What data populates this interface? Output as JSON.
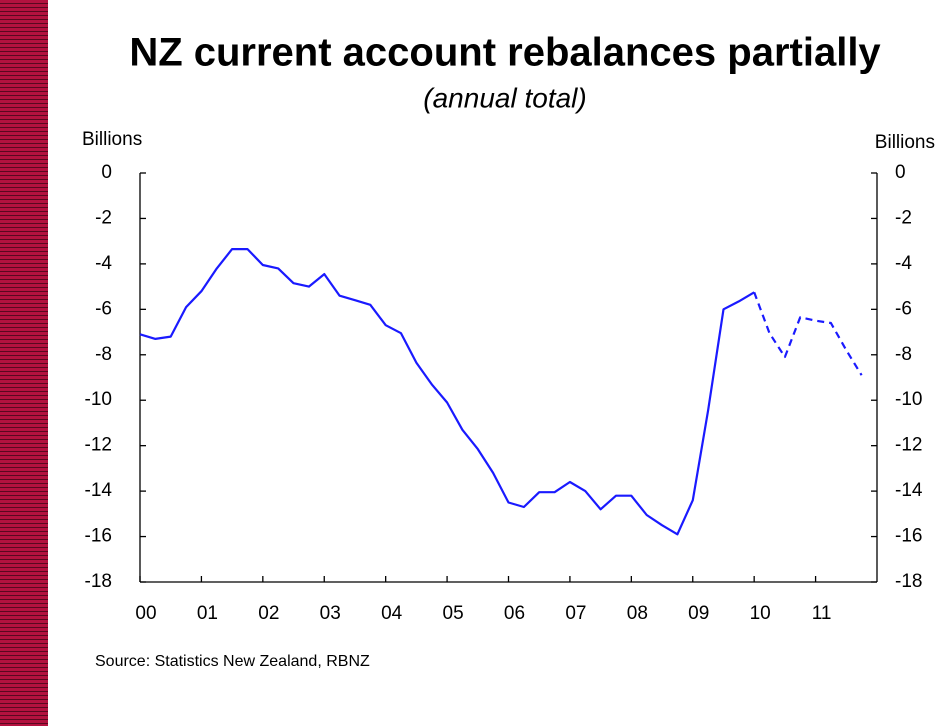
{
  "chart_data": {
    "type": "line",
    "title": "NZ current account rebalances partially",
    "subtitle": "(annual total)",
    "y_label": "Billions",
    "y2_label": "Billions",
    "source": "Source: Statistics New Zealand, RBNZ",
    "x": [
      2000,
      2000.25,
      2000.5,
      2000.75,
      2001,
      2001.25,
      2001.5,
      2001.75,
      2002,
      2002.25,
      2002.5,
      2002.75,
      2003,
      2003.25,
      2003.5,
      2003.75,
      2004,
      2004.25,
      2004.5,
      2004.75,
      2005,
      2005.25,
      2005.5,
      2005.75,
      2006,
      2006.25,
      2006.5,
      2006.75,
      2007,
      2007.25,
      2007.5,
      2007.75,
      2008,
      2008.25,
      2008.5,
      2008.75,
      2009,
      2009.25,
      2009.5,
      2009.75,
      2010,
      2010.25,
      2010.5,
      2010.75,
      2011,
      2011.25,
      2011.5,
      2011.75
    ],
    "series": [
      {
        "color": "#1a1aff",
        "dash": false,
        "values": [
          -7.1,
          -7.3,
          -7.2,
          -5.9,
          -5.2,
          -4.2,
          -3.35,
          -3.35,
          -4.05,
          -4.2,
          -4.85,
          -5.0,
          -4.45,
          -5.4,
          -5.6,
          -5.8,
          -6.7,
          -7.05,
          -8.35,
          -9.3,
          -10.1,
          -11.3,
          -12.15,
          -13.2,
          -14.5,
          -14.7,
          -14.05,
          -14.05,
          -13.6,
          -14.0,
          -14.8,
          -14.2,
          -14.2,
          -15.05,
          -15.5,
          -15.9,
          -14.4,
          -10.45,
          -6.0,
          -5.65,
          -5.25,
          null,
          null,
          null,
          null,
          null,
          null,
          null
        ]
      },
      {
        "color": "#1a1aff",
        "dash": true,
        "values": [
          null,
          null,
          null,
          null,
          null,
          null,
          null,
          null,
          null,
          null,
          null,
          null,
          null,
          null,
          null,
          null,
          null,
          null,
          null,
          null,
          null,
          null,
          null,
          null,
          null,
          null,
          null,
          null,
          null,
          null,
          null,
          null,
          null,
          null,
          null,
          null,
          null,
          null,
          null,
          null,
          -5.25,
          -7.05,
          -8.1,
          -6.35,
          -6.5,
          -6.6,
          -7.8,
          -8.9
        ]
      }
    ],
    "xlim": [
      2000,
      2012
    ],
    "xticks": [
      {
        "value": 2000,
        "label": "00"
      },
      {
        "value": 2001,
        "label": "01"
      },
      {
        "value": 2002,
        "label": "02"
      },
      {
        "value": 2003,
        "label": "03"
      },
      {
        "value": 2004,
        "label": "04"
      },
      {
        "value": 2005,
        "label": "05"
      },
      {
        "value": 2006,
        "label": "06"
      },
      {
        "value": 2007,
        "label": "07"
      },
      {
        "value": 2008,
        "label": "08"
      },
      {
        "value": 2009,
        "label": "09"
      },
      {
        "value": 2010,
        "label": "10"
      },
      {
        "value": 2011,
        "label": "11"
      }
    ],
    "ylim": [
      -18,
      0
    ],
    "yticks": [
      0,
      -2,
      -4,
      -6,
      -8,
      -10,
      -12,
      -14,
      -16,
      -18
    ],
    "y2lim": [
      -18,
      0
    ],
    "y2ticks": [
      0,
      -2,
      -4,
      -6,
      -8,
      -10,
      -12,
      -14,
      -16,
      -18
    ],
    "grid": false
  }
}
